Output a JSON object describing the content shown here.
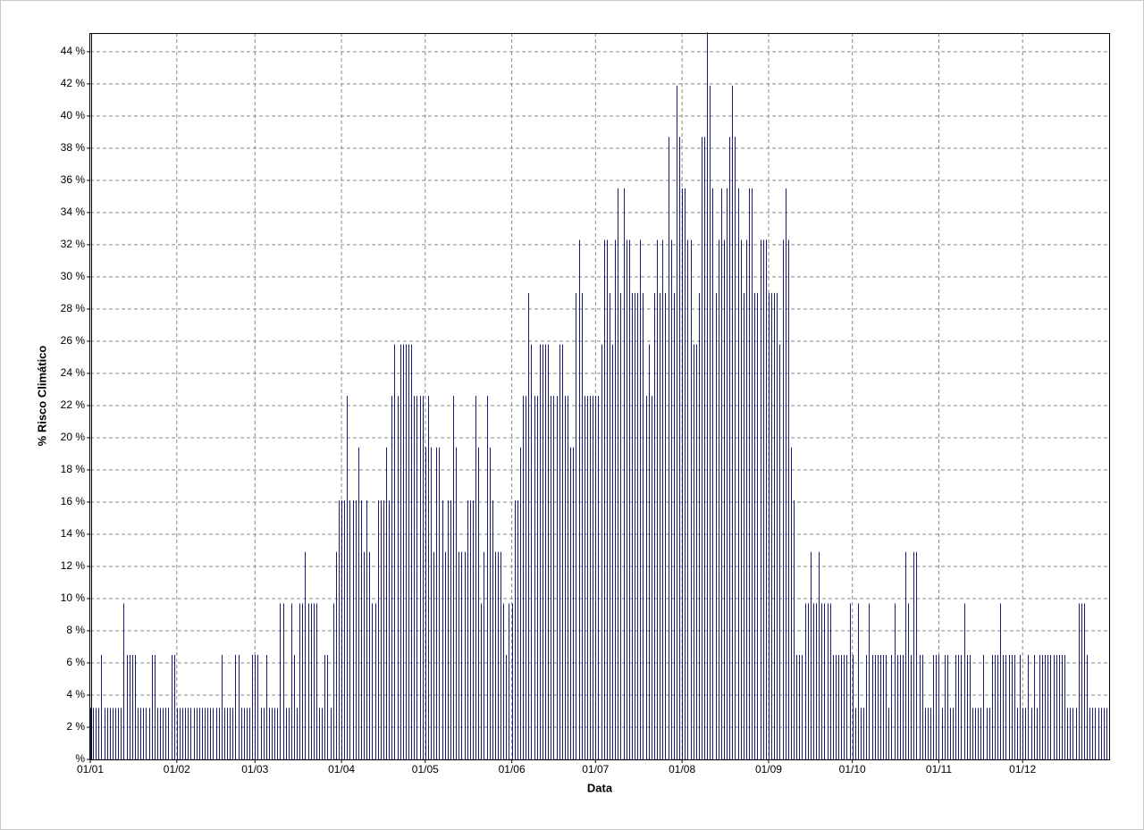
{
  "chart_data": {
    "type": "bar",
    "x_label": "Data",
    "y_label": "% Risco Climático",
    "color": "#1c1c78",
    "grid": true,
    "ylim": [
      0,
      45.16
    ],
    "yticks": [
      {
        "value": 0,
        "label": "%"
      },
      {
        "value": 2,
        "label": "2 %"
      },
      {
        "value": 4,
        "label": "4 %"
      },
      {
        "value": 6,
        "label": "6 %"
      },
      {
        "value": 8,
        "label": "8 %"
      },
      {
        "value": 10,
        "label": "10 %"
      },
      {
        "value": 12,
        "label": "12 %"
      },
      {
        "value": 14,
        "label": "14 %"
      },
      {
        "value": 16,
        "label": "16 %"
      },
      {
        "value": 18,
        "label": "18 %"
      },
      {
        "value": 20,
        "label": "20 %"
      },
      {
        "value": 22,
        "label": "22 %"
      },
      {
        "value": 24,
        "label": "24 %"
      },
      {
        "value": 26,
        "label": "26 %"
      },
      {
        "value": 28,
        "label": "28 %"
      },
      {
        "value": 30,
        "label": "30 %"
      },
      {
        "value": 32,
        "label": "32 %"
      },
      {
        "value": 34,
        "label": "34 %"
      },
      {
        "value": 36,
        "label": "36 %"
      },
      {
        "value": 38,
        "label": "38 %"
      },
      {
        "value": 40,
        "label": "40 %"
      },
      {
        "value": 42,
        "label": "42 %"
      },
      {
        "value": 44,
        "label": "44 %"
      }
    ],
    "categories": [
      "01/01",
      null,
      null,
      null,
      null,
      null,
      null,
      null,
      null,
      null,
      null,
      null,
      null,
      null,
      null,
      null,
      null,
      null,
      null,
      null,
      null,
      null,
      null,
      null,
      null,
      null,
      null,
      null,
      null,
      null,
      null,
      "01/02",
      null,
      null,
      null,
      null,
      null,
      null,
      null,
      null,
      null,
      null,
      null,
      null,
      null,
      null,
      null,
      null,
      null,
      null,
      null,
      null,
      null,
      null,
      null,
      null,
      null,
      null,
      null,
      "01/03",
      null,
      null,
      null,
      null,
      null,
      null,
      null,
      null,
      null,
      null,
      null,
      null,
      null,
      null,
      null,
      null,
      null,
      null,
      null,
      null,
      null,
      null,
      null,
      null,
      null,
      null,
      null,
      null,
      null,
      null,
      "01/04",
      null,
      null,
      null,
      null,
      null,
      null,
      null,
      null,
      null,
      null,
      null,
      null,
      null,
      null,
      null,
      null,
      null,
      null,
      null,
      null,
      null,
      null,
      null,
      null,
      null,
      null,
      null,
      null,
      null,
      "01/05",
      null,
      null,
      null,
      null,
      null,
      null,
      null,
      null,
      null,
      null,
      null,
      null,
      null,
      null,
      null,
      null,
      null,
      null,
      null,
      null,
      null,
      null,
      null,
      null,
      null,
      null,
      null,
      null,
      null,
      null,
      "01/06",
      null,
      null,
      null,
      null,
      null,
      null,
      null,
      null,
      null,
      null,
      null,
      null,
      null,
      null,
      null,
      null,
      null,
      null,
      null,
      null,
      null,
      null,
      null,
      null,
      null,
      null,
      null,
      null,
      null,
      "01/07",
      null,
      null,
      null,
      null,
      null,
      null,
      null,
      null,
      null,
      null,
      null,
      null,
      null,
      null,
      null,
      null,
      null,
      null,
      null,
      null,
      null,
      null,
      null,
      null,
      null,
      null,
      null,
      null,
      null,
      null,
      "01/08",
      null,
      null,
      null,
      null,
      null,
      null,
      null,
      null,
      null,
      null,
      null,
      null,
      null,
      null,
      null,
      null,
      null,
      null,
      null,
      null,
      null,
      null,
      null,
      null,
      null,
      null,
      null,
      null,
      null,
      null,
      "01/09",
      null,
      null,
      null,
      null,
      null,
      null,
      null,
      null,
      null,
      null,
      null,
      null,
      null,
      null,
      null,
      null,
      null,
      null,
      null,
      null,
      null,
      null,
      null,
      null,
      null,
      null,
      null,
      null,
      null,
      "01/10",
      null,
      null,
      null,
      null,
      null,
      null,
      null,
      null,
      null,
      null,
      null,
      null,
      null,
      null,
      null,
      null,
      null,
      null,
      null,
      null,
      null,
      null,
      null,
      null,
      null,
      null,
      null,
      null,
      null,
      null,
      "01/11",
      null,
      null,
      null,
      null,
      null,
      null,
      null,
      null,
      null,
      null,
      null,
      null,
      null,
      null,
      null,
      null,
      null,
      null,
      null,
      null,
      null,
      null,
      null,
      null,
      null,
      null,
      null,
      null,
      null,
      "01/12",
      null,
      null,
      null,
      null,
      null,
      null,
      null,
      null,
      null,
      null,
      null,
      null,
      null,
      null,
      null,
      null,
      null,
      null,
      null,
      null,
      null,
      null,
      null,
      null,
      null,
      null,
      null,
      null,
      null,
      null
    ],
    "values": [
      3.2,
      3.2,
      3.2,
      3.2,
      6.5,
      3.2,
      3.2,
      3.2,
      3.2,
      3.2,
      3.2,
      3.2,
      9.7,
      6.5,
      6.5,
      6.5,
      6.5,
      3.2,
      3.2,
      3.2,
      3.2,
      3.2,
      6.5,
      6.5,
      3.2,
      3.2,
      3.2,
      3.2,
      3.2,
      6.5,
      6.5,
      3.2,
      3.2,
      3.2,
      3.2,
      3.2,
      3.2,
      3.2,
      3.2,
      3.2,
      3.2,
      3.2,
      3.2,
      3.2,
      3.2,
      3.2,
      3.2,
      6.5,
      3.2,
      3.2,
      3.2,
      3.2,
      6.5,
      6.5,
      3.2,
      3.2,
      3.2,
      3.2,
      6.5,
      6.5,
      6.5,
      3.2,
      3.2,
      6.5,
      3.2,
      3.2,
      3.2,
      3.2,
      9.7,
      9.7,
      3.2,
      3.2,
      9.7,
      6.5,
      3.2,
      9.7,
      9.7,
      12.9,
      9.7,
      9.7,
      9.7,
      9.7,
      3.2,
      3.2,
      6.5,
      6.5,
      3.2,
      9.7,
      12.9,
      16.1,
      16.1,
      16.1,
      22.6,
      16.1,
      16.1,
      16.1,
      19.4,
      16.1,
      12.9,
      16.1,
      12.9,
      9.7,
      9.7,
      16.1,
      16.1,
      16.1,
      19.4,
      16.1,
      22.6,
      25.8,
      22.6,
      25.8,
      25.8,
      25.8,
      25.8,
      25.8,
      22.6,
      22.6,
      22.6,
      22.6,
      19.4,
      22.6,
      19.4,
      12.9,
      19.4,
      19.4,
      16.1,
      12.9,
      16.1,
      16.1,
      22.6,
      19.4,
      12.9,
      12.9,
      12.9,
      16.1,
      16.1,
      16.1,
      22.6,
      19.4,
      9.7,
      12.9,
      22.6,
      19.4,
      16.1,
      12.9,
      12.9,
      12.9,
      9.7,
      6.5,
      9.7,
      9.7,
      16.1,
      16.1,
      19.4,
      22.6,
      22.6,
      29.0,
      25.8,
      22.6,
      22.6,
      25.8,
      25.8,
      25.8,
      25.8,
      22.6,
      22.6,
      22.6,
      25.8,
      25.8,
      22.6,
      22.6,
      19.4,
      19.4,
      29.0,
      32.3,
      29.0,
      22.6,
      22.6,
      22.6,
      22.6,
      22.6,
      22.6,
      25.8,
      32.3,
      32.3,
      29.0,
      25.8,
      32.3,
      35.5,
      29.0,
      35.5,
      32.3,
      32.3,
      29.0,
      29.0,
      29.0,
      32.3,
      29.0,
      22.6,
      25.8,
      22.6,
      29.0,
      32.3,
      29.0,
      32.3,
      29.0,
      38.7,
      32.3,
      29.0,
      41.9,
      38.7,
      35.5,
      35.5,
      32.3,
      32.3,
      25.8,
      25.8,
      29.0,
      38.7,
      38.7,
      45.2,
      41.9,
      35.5,
      29.0,
      32.3,
      35.5,
      32.3,
      35.5,
      38.7,
      41.9,
      38.7,
      35.5,
      32.3,
      29.0,
      32.3,
      35.5,
      35.5,
      29.0,
      29.0,
      32.3,
      32.3,
      32.3,
      29.0,
      29.0,
      29.0,
      29.0,
      25.8,
      32.3,
      35.5,
      32.3,
      19.4,
      16.1,
      6.5,
      6.5,
      6.5,
      9.7,
      9.7,
      12.9,
      9.7,
      9.7,
      12.9,
      9.7,
      9.7,
      9.7,
      9.7,
      6.5,
      6.5,
      6.5,
      6.5,
      6.5,
      6.5,
      9.7,
      6.5,
      3.2,
      9.7,
      3.2,
      3.2,
      6.5,
      9.7,
      6.5,
      6.5,
      6.5,
      6.5,
      6.5,
      6.5,
      3.2,
      6.5,
      9.7,
      6.5,
      6.5,
      6.5,
      12.9,
      9.7,
      6.5,
      12.9,
      12.9,
      6.5,
      6.5,
      3.2,
      3.2,
      3.2,
      6.5,
      6.5,
      6.5,
      3.2,
      6.5,
      6.5,
      3.2,
      3.2,
      6.5,
      6.5,
      6.5,
      9.7,
      6.5,
      6.5,
      3.2,
      3.2,
      3.2,
      3.2,
      6.5,
      3.2,
      3.2,
      6.5,
      6.5,
      6.5,
      9.7,
      6.5,
      6.5,
      6.5,
      6.5,
      6.5,
      3.2,
      6.5,
      3.2,
      3.2,
      6.5,
      3.2,
      6.5,
      3.2,
      6.5,
      6.5,
      6.5,
      6.5,
      6.5,
      6.5,
      6.5,
      6.5,
      6.5,
      6.5,
      3.2,
      3.2,
      3.2,
      3.2,
      9.7,
      9.7,
      9.7,
      6.5,
      3.2,
      3.2,
      3.2,
      3.2,
      3.2,
      3.2,
      3.2
    ]
  }
}
